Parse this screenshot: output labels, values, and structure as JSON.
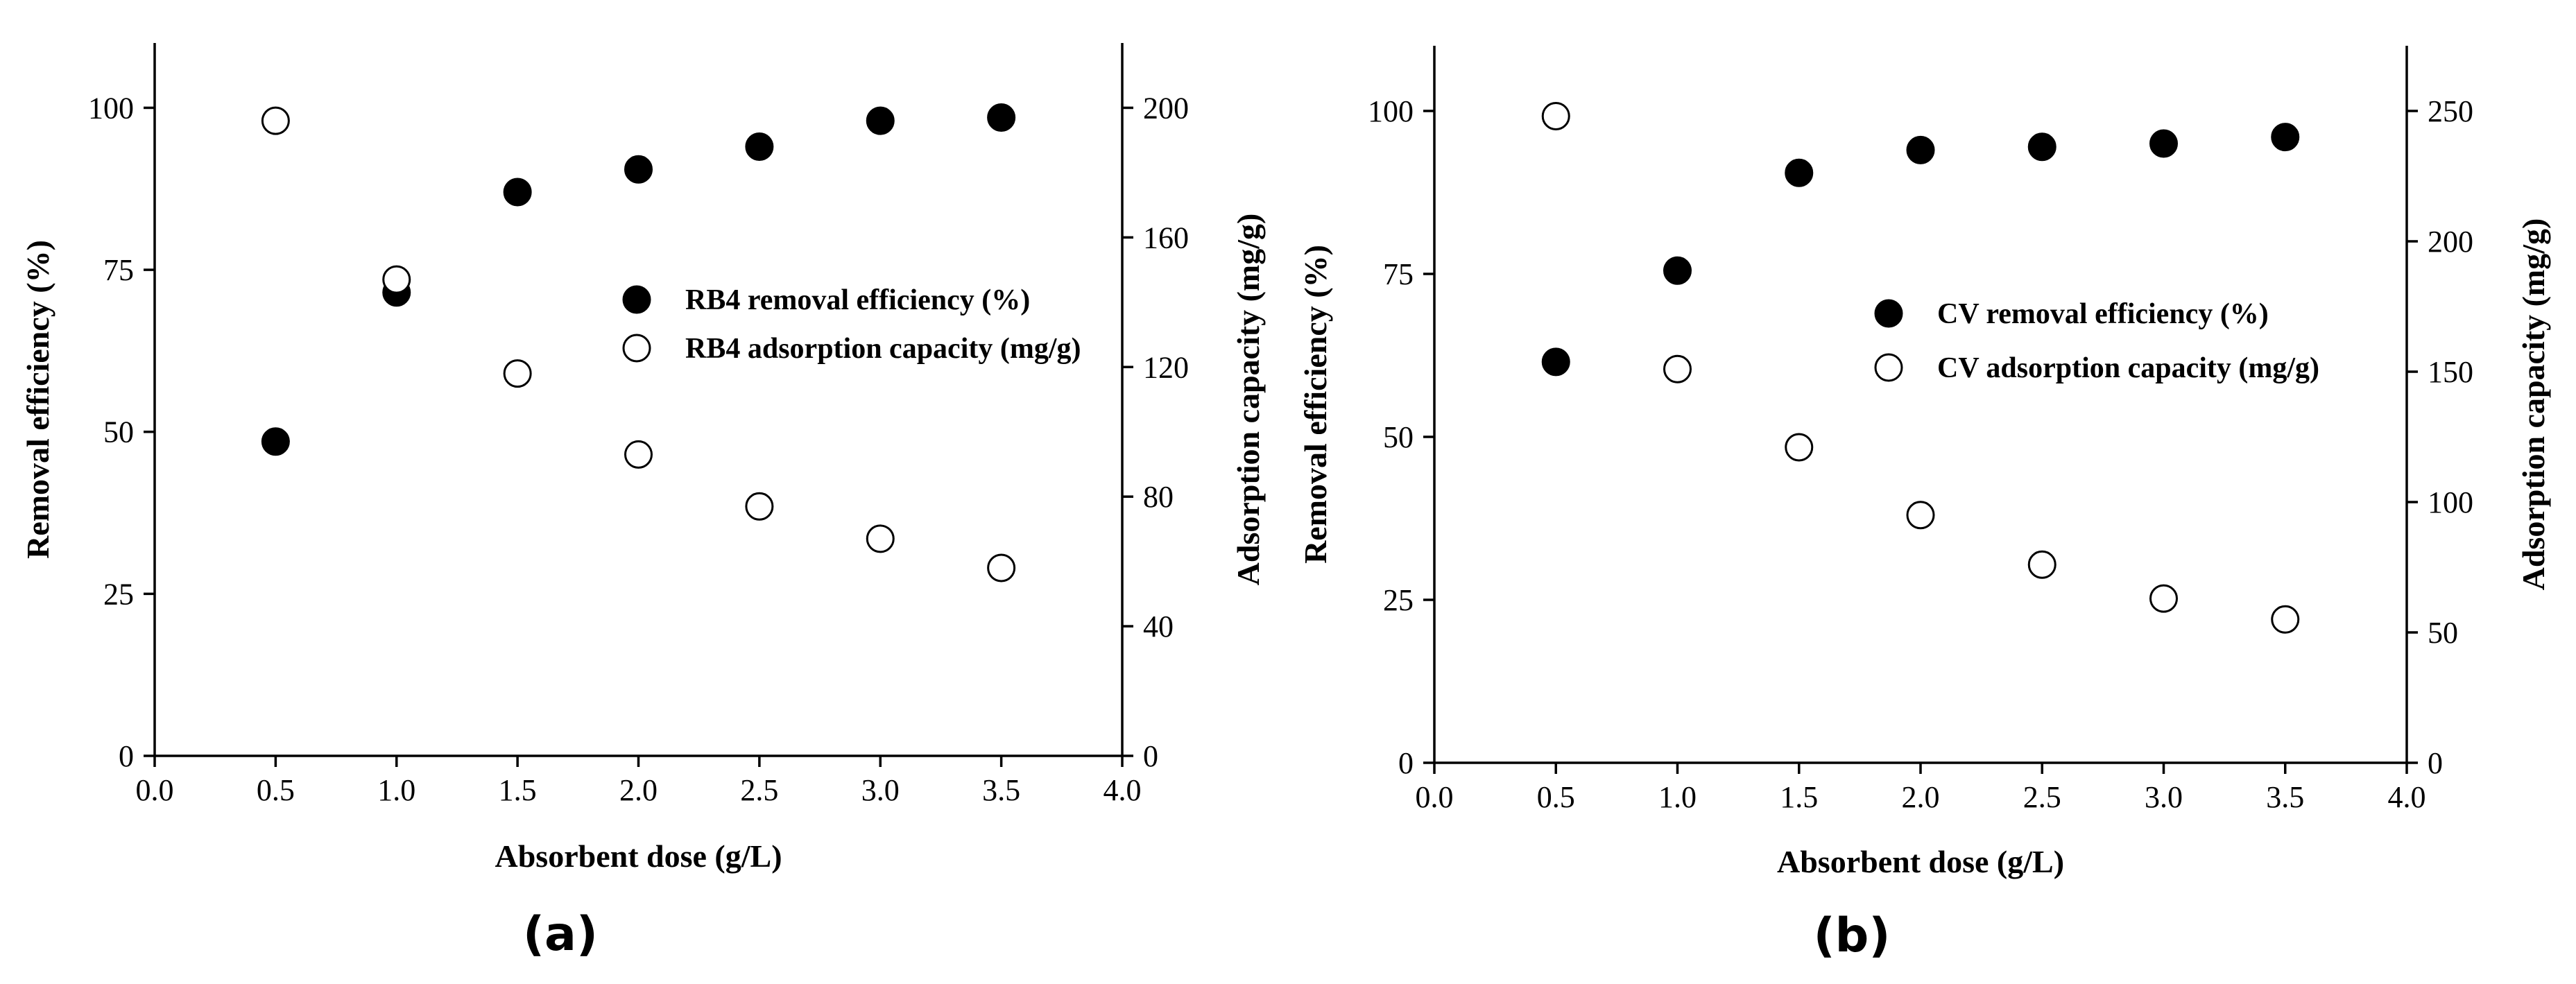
{
  "chart_data": [
    {
      "type": "scatter",
      "panel_label": "(a)",
      "xlabel": "Absorbent dose (g/L)",
      "ylabel": "Removal efficiency (%)",
      "y2label": "Adsorption capacity (mg/g)",
      "xlim": [
        0,
        4
      ],
      "ylim": [
        0,
        110
      ],
      "y2lim": [
        0,
        220
      ],
      "x_ticks": [
        "0.0",
        "0.5",
        "1.0",
        "1.5",
        "2.0",
        "2.5",
        "3.0",
        "3.5",
        "4.0"
      ],
      "y_ticks": [
        "0",
        "25",
        "50",
        "75",
        "100"
      ],
      "y2_ticks": [
        "0",
        "40",
        "80",
        "120",
        "160",
        "200"
      ],
      "grid": false,
      "legend_position": "center-right",
      "series": [
        {
          "name": "RB4 removal efficiency (%)",
          "axis": "left",
          "marker": "filled-circle",
          "x": [
            0.5,
            1.0,
            1.5,
            2.0,
            2.5,
            3.0,
            3.5
          ],
          "y": [
            48.5,
            71.5,
            87.0,
            90.5,
            94.0,
            98.0,
            98.5
          ]
        },
        {
          "name": "RB4 adsorption capacity (mg/g)",
          "axis": "right",
          "marker": "open-circle",
          "x": [
            0.5,
            1.0,
            1.5,
            2.0,
            2.5,
            3.0,
            3.5
          ],
          "y": [
            196,
            147,
            118,
            93,
            77,
            67,
            58
          ]
        }
      ]
    },
    {
      "type": "scatter",
      "panel_label": "(b)",
      "xlabel": "Absorbent dose (g/L)",
      "ylabel": "Removal efficiency (%)",
      "y2label": "Adsorption capacity (mg/g)",
      "xlim": [
        0,
        4
      ],
      "ylim": [
        0,
        110
      ],
      "y2lim": [
        0,
        275
      ],
      "x_ticks": [
        "0.0",
        "0.5",
        "1.0",
        "1.5",
        "2.0",
        "2.5",
        "3.0",
        "3.5",
        "4.0"
      ],
      "y_ticks": [
        "0",
        "25",
        "50",
        "75",
        "100"
      ],
      "y2_ticks": [
        "0",
        "50",
        "100",
        "150",
        "200",
        "250"
      ],
      "grid": false,
      "legend_position": "center-right",
      "series": [
        {
          "name": "CV removal efficiency (%)",
          "axis": "left",
          "marker": "filled-circle",
          "x": [
            0.5,
            1.0,
            1.5,
            2.0,
            2.5,
            3.0,
            3.5
          ],
          "y": [
            61.5,
            75.5,
            90.5,
            94.0,
            94.5,
            95.0,
            96.0
          ]
        },
        {
          "name": "CV adsorption capacity (mg/g)",
          "axis": "right",
          "marker": "open-circle",
          "x": [
            0.5,
            1.0,
            1.5,
            2.0,
            2.5,
            3.0,
            3.5
          ],
          "y": [
            248,
            151,
            121,
            95,
            76,
            63,
            55
          ]
        }
      ]
    }
  ]
}
